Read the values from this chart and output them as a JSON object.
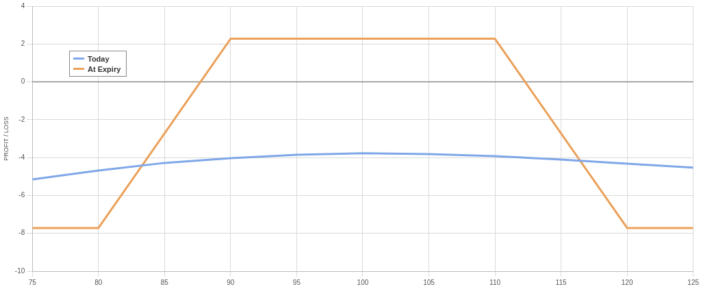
{
  "chart_data": {
    "type": "line",
    "ylabel": "PROFIT / LOSS",
    "xlim": [
      75,
      125
    ],
    "xticks": [
      75,
      80,
      85,
      90,
      95,
      100,
      105,
      110,
      115,
      120,
      125
    ],
    "ylim": [
      -10,
      4
    ],
    "yticks": [
      -10,
      -8,
      -6,
      -4,
      -2,
      0,
      2,
      4
    ],
    "grid": true,
    "legend": "top left",
    "marker": "none",
    "line_style": "solid",
    "ref_lines": [
      {
        "axis": "y",
        "value": 0,
        "color": "#8c8c8c"
      }
    ],
    "series": [
      {
        "name": "Today",
        "color": "#7fa7e8",
        "x": [
          75,
          80,
          85,
          90,
          95,
          100,
          105,
          110,
          115,
          120,
          125
        ],
        "values": [
          -5.15,
          -4.68,
          -4.28,
          -4.03,
          -3.85,
          -3.77,
          -3.81,
          -3.92,
          -4.1,
          -4.32,
          -4.53
        ]
      },
      {
        "name": "At Expiry",
        "color": "#eba15a",
        "x": [
          75,
          80,
          90,
          110,
          120,
          125
        ],
        "values": [
          -7.72,
          -7.72,
          2.28,
          2.28,
          -7.72,
          -7.72
        ]
      }
    ]
  }
}
